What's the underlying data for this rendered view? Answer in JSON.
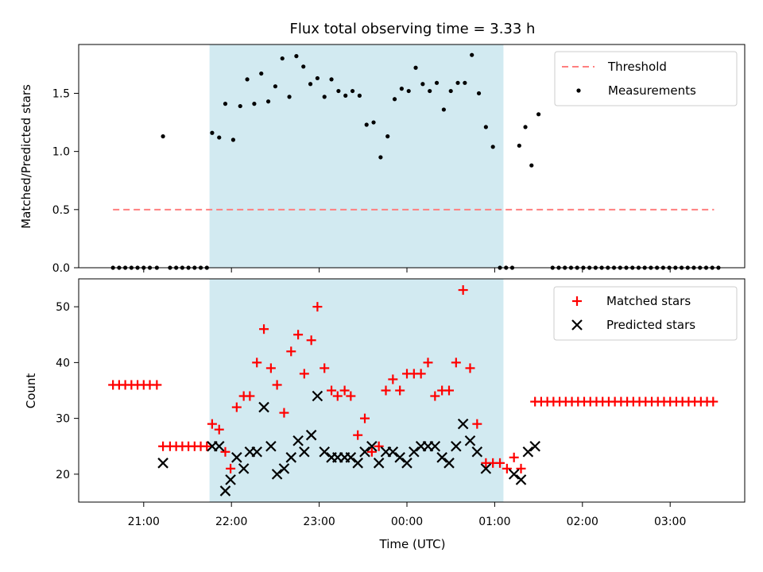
{
  "chart_data": [
    {
      "type": "scatter",
      "title": "Flux total observing time = 3.33 h",
      "xlabel": "",
      "ylabel": "Matched/Predicted stars",
      "ylim": [
        0,
        1.92
      ],
      "yticks": [
        0.0,
        0.5,
        1.0,
        1.5
      ],
      "ytick_labels": [
        "0.0",
        "0.5",
        "1.0",
        "1.5"
      ],
      "shaded_interval_hours": [
        -2.25,
        1.1
      ],
      "shade_color": "#add8e6",
      "legend_placement": "top-right",
      "threshold": {
        "name": "Threshold",
        "value": 0.5,
        "x_range_hours": [
          -3.35,
          3.5
        ],
        "color": "#ff7f7f",
        "style": "dashed"
      },
      "series": [
        {
          "name": "Measurements",
          "marker": "dot",
          "color": "#000000",
          "points": [
            [
              -3.35,
              0
            ],
            [
              -3.28,
              0
            ],
            [
              -3.21,
              0
            ],
            [
              -3.14,
              0
            ],
            [
              -3.07,
              0
            ],
            [
              -3.0,
              0
            ],
            [
              -2.93,
              0
            ],
            [
              -2.85,
              0
            ],
            [
              -2.78,
              1.13
            ],
            [
              -2.7,
              0
            ],
            [
              -2.63,
              0
            ],
            [
              -2.56,
              0
            ],
            [
              -2.49,
              0
            ],
            [
              -2.42,
              0
            ],
            [
              -2.35,
              0
            ],
            [
              -2.28,
              0
            ],
            [
              -2.22,
              1.16
            ],
            [
              -2.14,
              1.12
            ],
            [
              -2.07,
              1.41
            ],
            [
              -1.98,
              1.1
            ],
            [
              -1.9,
              1.39
            ],
            [
              -1.82,
              1.62
            ],
            [
              -1.74,
              1.41
            ],
            [
              -1.66,
              1.67
            ],
            [
              -1.58,
              1.43
            ],
            [
              -1.5,
              1.56
            ],
            [
              -1.42,
              1.8
            ],
            [
              -1.34,
              1.47
            ],
            [
              -1.26,
              1.82
            ],
            [
              -1.18,
              1.73
            ],
            [
              -1.1,
              1.58
            ],
            [
              -1.02,
              1.63
            ],
            [
              -0.94,
              1.47
            ],
            [
              -0.86,
              1.62
            ],
            [
              -0.78,
              1.52
            ],
            [
              -0.7,
              1.48
            ],
            [
              -0.62,
              1.52
            ],
            [
              -0.54,
              1.48
            ],
            [
              -0.46,
              1.23
            ],
            [
              -0.38,
              1.25
            ],
            [
              -0.3,
              0.95
            ],
            [
              -0.22,
              1.13
            ],
            [
              -0.14,
              1.45
            ],
            [
              -0.06,
              1.54
            ],
            [
              0.02,
              1.52
            ],
            [
              0.1,
              1.72
            ],
            [
              0.18,
              1.58
            ],
            [
              0.26,
              1.52
            ],
            [
              0.34,
              1.59
            ],
            [
              0.42,
              1.36
            ],
            [
              0.5,
              1.52
            ],
            [
              0.58,
              1.59
            ],
            [
              0.66,
              1.59
            ],
            [
              0.74,
              1.83
            ],
            [
              0.82,
              1.5
            ],
            [
              0.9,
              1.21
            ],
            [
              0.98,
              1.04
            ],
            [
              1.06,
              0
            ],
            [
              1.13,
              0
            ],
            [
              1.2,
              0
            ],
            [
              1.28,
              1.05
            ],
            [
              1.35,
              1.21
            ],
            [
              1.42,
              0.88
            ],
            [
              1.5,
              1.32
            ],
            [
              1.66,
              0
            ],
            [
              1.73,
              0
            ],
            [
              1.8,
              0
            ],
            [
              1.87,
              0
            ],
            [
              1.94,
              0
            ],
            [
              2.01,
              0
            ],
            [
              2.08,
              0
            ],
            [
              2.15,
              0
            ],
            [
              2.22,
              0
            ],
            [
              2.29,
              0
            ],
            [
              2.36,
              0
            ],
            [
              2.43,
              0
            ],
            [
              2.5,
              0
            ],
            [
              2.57,
              0
            ],
            [
              2.64,
              0
            ],
            [
              2.71,
              0
            ],
            [
              2.78,
              0
            ],
            [
              2.85,
              0
            ],
            [
              2.92,
              0
            ],
            [
              2.99,
              0
            ],
            [
              3.06,
              0
            ],
            [
              3.13,
              0
            ],
            [
              3.2,
              0
            ],
            [
              3.27,
              0
            ],
            [
              3.34,
              0
            ],
            [
              3.41,
              0
            ],
            [
              3.48,
              0
            ],
            [
              3.55,
              0
            ]
          ]
        }
      ]
    },
    {
      "type": "scatter",
      "title": "",
      "xlabel": "Time (UTC)",
      "ylabel": "Count",
      "ylim": [
        15,
        55
      ],
      "yticks": [
        20,
        30,
        40,
        50
      ],
      "ytick_labels": [
        "20",
        "30",
        "40",
        "50"
      ],
      "xticks_hours": [
        -3,
        -2,
        -1,
        0,
        1,
        2,
        3
      ],
      "xtick_labels": [
        "21:00",
        "22:00",
        "23:00",
        "00:00",
        "01:00",
        "02:00",
        "03:00"
      ],
      "shaded_interval_hours": [
        -2.25,
        1.1
      ],
      "legend_placement": "top-right",
      "series": [
        {
          "name": "Matched stars",
          "marker": "plus",
          "color": "#ff0000",
          "points": [
            [
              -3.35,
              36
            ],
            [
              -3.28,
              36
            ],
            [
              -3.21,
              36
            ],
            [
              -3.14,
              36
            ],
            [
              -3.07,
              36
            ],
            [
              -3.0,
              36
            ],
            [
              -2.93,
              36
            ],
            [
              -2.85,
              36
            ],
            [
              -2.78,
              25
            ],
            [
              -2.7,
              25
            ],
            [
              -2.63,
              25
            ],
            [
              -2.56,
              25
            ],
            [
              -2.49,
              25
            ],
            [
              -2.42,
              25
            ],
            [
              -2.35,
              25
            ],
            [
              -2.28,
              25
            ],
            [
              -2.22,
              29
            ],
            [
              -2.14,
              28
            ],
            [
              -2.07,
              24
            ],
            [
              -2.01,
              21
            ],
            [
              -1.94,
              32
            ],
            [
              -1.86,
              34
            ],
            [
              -1.79,
              34
            ],
            [
              -1.71,
              40
            ],
            [
              -1.63,
              46
            ],
            [
              -1.55,
              39
            ],
            [
              -1.48,
              36
            ],
            [
              -1.4,
              31
            ],
            [
              -1.32,
              42
            ],
            [
              -1.24,
              45
            ],
            [
              -1.17,
              38
            ],
            [
              -1.09,
              44
            ],
            [
              -1.02,
              50
            ],
            [
              -0.94,
              39
            ],
            [
              -0.86,
              35
            ],
            [
              -0.79,
              34
            ],
            [
              -0.71,
              35
            ],
            [
              -0.64,
              34
            ],
            [
              -0.56,
              27
            ],
            [
              -0.48,
              30
            ],
            [
              -0.4,
              24
            ],
            [
              -0.32,
              25
            ],
            [
              -0.24,
              35
            ],
            [
              -0.16,
              37
            ],
            [
              -0.08,
              35
            ],
            [
              0.0,
              38
            ],
            [
              0.08,
              38
            ],
            [
              0.16,
              38
            ],
            [
              0.24,
              40
            ],
            [
              0.32,
              34
            ],
            [
              0.4,
              35
            ],
            [
              0.48,
              35
            ],
            [
              0.56,
              40
            ],
            [
              0.64,
              53
            ],
            [
              0.72,
              39
            ],
            [
              0.8,
              29
            ],
            [
              0.9,
              22
            ],
            [
              0.98,
              22
            ],
            [
              1.06,
              22
            ],
            [
              1.14,
              21
            ],
            [
              1.22,
              23
            ],
            [
              1.3,
              21
            ],
            [
              1.46,
              33
            ],
            [
              1.53,
              33
            ],
            [
              1.6,
              33
            ],
            [
              1.67,
              33
            ],
            [
              1.74,
              33
            ],
            [
              1.81,
              33
            ],
            [
              1.88,
              33
            ],
            [
              1.95,
              33
            ],
            [
              2.02,
              33
            ],
            [
              2.09,
              33
            ],
            [
              2.16,
              33
            ],
            [
              2.23,
              33
            ],
            [
              2.3,
              33
            ],
            [
              2.37,
              33
            ],
            [
              2.44,
              33
            ],
            [
              2.51,
              33
            ],
            [
              2.58,
              33
            ],
            [
              2.65,
              33
            ],
            [
              2.72,
              33
            ],
            [
              2.79,
              33
            ],
            [
              2.86,
              33
            ],
            [
              2.93,
              33
            ],
            [
              3.0,
              33
            ],
            [
              3.07,
              33
            ],
            [
              3.14,
              33
            ],
            [
              3.21,
              33
            ],
            [
              3.28,
              33
            ],
            [
              3.35,
              33
            ],
            [
              3.42,
              33
            ],
            [
              3.49,
              33
            ]
          ]
        },
        {
          "name": "Predicted stars",
          "marker": "x",
          "color": "#000000",
          "points": [
            [
              -2.78,
              22
            ],
            [
              -2.22,
              25
            ],
            [
              -2.14,
              25
            ],
            [
              -2.07,
              17
            ],
            [
              -2.01,
              19
            ],
            [
              -1.94,
              23
            ],
            [
              -1.86,
              21
            ],
            [
              -1.79,
              24
            ],
            [
              -1.71,
              24
            ],
            [
              -1.63,
              32
            ],
            [
              -1.55,
              25
            ],
            [
              -1.48,
              20
            ],
            [
              -1.4,
              21
            ],
            [
              -1.32,
              23
            ],
            [
              -1.24,
              26
            ],
            [
              -1.17,
              24
            ],
            [
              -1.09,
              27
            ],
            [
              -1.02,
              34
            ],
            [
              -0.94,
              24
            ],
            [
              -0.86,
              23
            ],
            [
              -0.79,
              23
            ],
            [
              -0.71,
              23
            ],
            [
              -0.64,
              23
            ],
            [
              -0.56,
              22
            ],
            [
              -0.48,
              24
            ],
            [
              -0.4,
              25
            ],
            [
              -0.32,
              22
            ],
            [
              -0.24,
              24
            ],
            [
              -0.16,
              24
            ],
            [
              -0.08,
              23
            ],
            [
              0.0,
              22
            ],
            [
              0.08,
              24
            ],
            [
              0.16,
              25
            ],
            [
              0.24,
              25
            ],
            [
              0.32,
              25
            ],
            [
              0.4,
              23
            ],
            [
              0.48,
              22
            ],
            [
              0.56,
              25
            ],
            [
              0.64,
              29
            ],
            [
              0.72,
              26
            ],
            [
              0.8,
              24
            ],
            [
              0.9,
              21
            ],
            [
              1.22,
              20
            ],
            [
              1.3,
              19
            ],
            [
              1.38,
              24
            ],
            [
              1.46,
              25
            ]
          ]
        }
      ]
    }
  ]
}
